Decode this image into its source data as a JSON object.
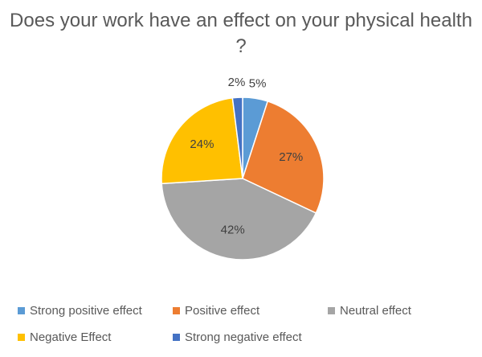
{
  "chart_data": {
    "type": "pie",
    "title": "Does your work have an effect on your physical health ?",
    "categories": [
      "Strong positive effect",
      "Positive effect",
      "Neutral effect",
      "Negative Effect",
      "Strong negative effect"
    ],
    "values": [
      5,
      27,
      42,
      24,
      2
    ],
    "value_labels": [
      "5%",
      "27%",
      "42%",
      "24%",
      "2%"
    ],
    "colors": [
      "#5b9bd5",
      "#ed7d31",
      "#a5a5a5",
      "#ffc000",
      "#4472c4"
    ],
    "legend": "bottom"
  }
}
